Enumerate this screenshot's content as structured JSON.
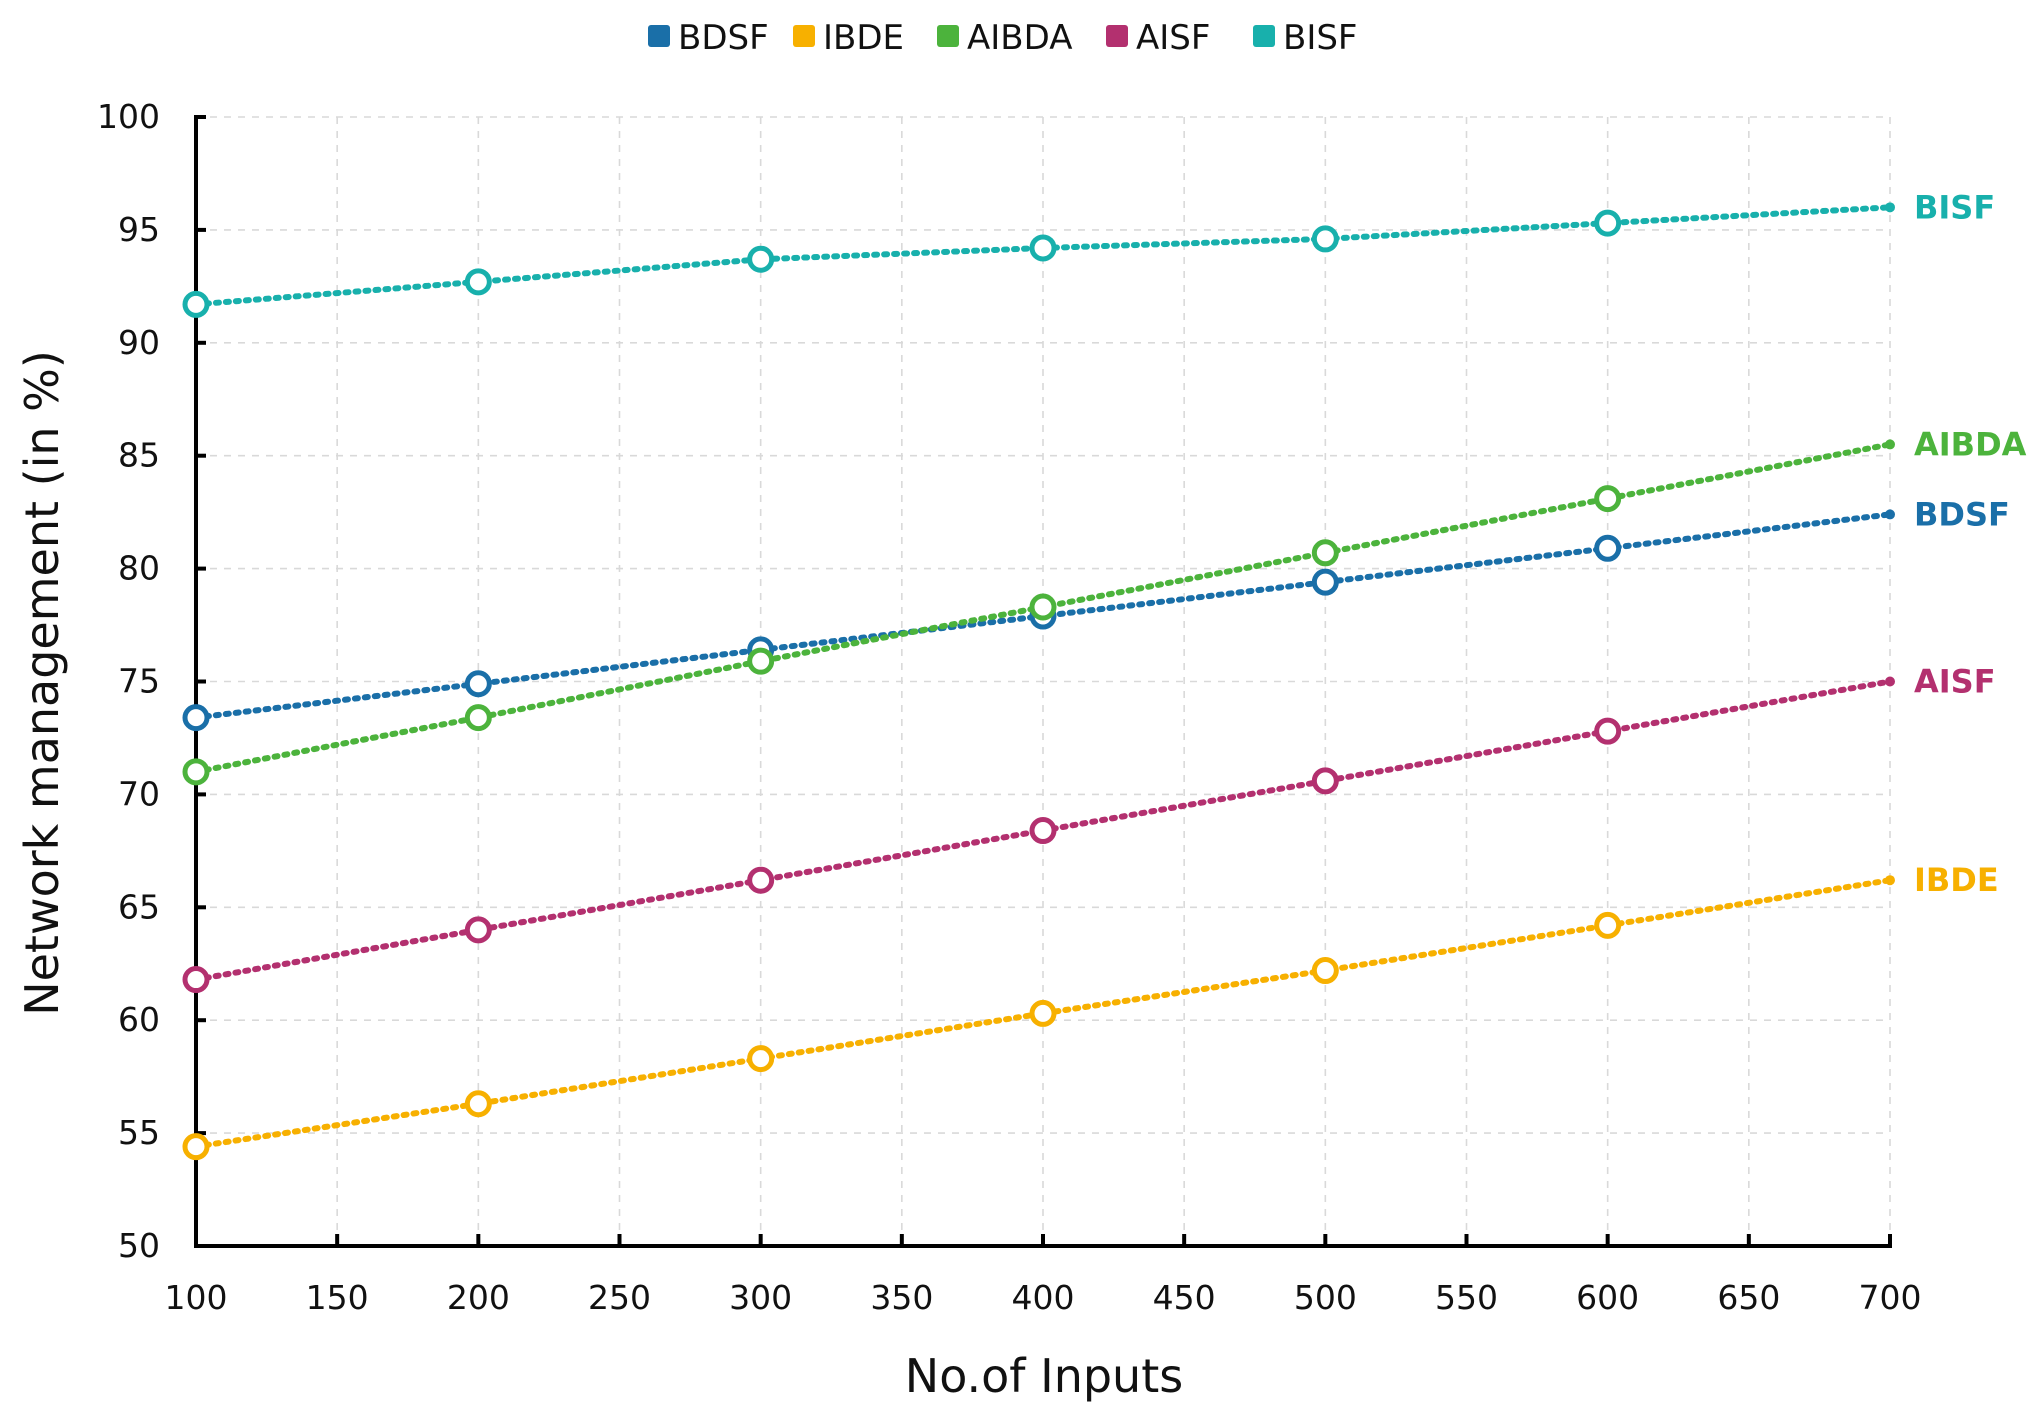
{
  "chart_data": {
    "type": "line",
    "title": "",
    "xlabel": "No.of Inputs",
    "ylabel": "Network management (in %)",
    "xlim": [
      100,
      700
    ],
    "ylim": [
      50,
      100
    ],
    "xticks": [
      100,
      150,
      200,
      250,
      300,
      350,
      400,
      450,
      500,
      550,
      600,
      650,
      700
    ],
    "yticks": [
      50,
      55,
      60,
      65,
      70,
      75,
      80,
      85,
      90,
      95,
      100
    ],
    "grid": true,
    "legend_position": "top-center",
    "x": [
      100,
      200,
      300,
      400,
      500,
      600,
      700
    ],
    "series": [
      {
        "name": "BDSF",
        "color": "#1a6fa8",
        "values": [
          73.4,
          74.9,
          76.4,
          77.9,
          79.4,
          80.9,
          82.4
        ]
      },
      {
        "name": "IBDE",
        "color": "#f7b000",
        "values": [
          54.4,
          56.3,
          58.3,
          60.3,
          62.2,
          64.2,
          66.2
        ]
      },
      {
        "name": "AIBDA",
        "color": "#4cb33c",
        "values": [
          71.0,
          73.4,
          75.9,
          78.3,
          80.7,
          83.1,
          85.5
        ]
      },
      {
        "name": "AISF",
        "color": "#b3306f",
        "values": [
          61.8,
          64.0,
          66.2,
          68.4,
          70.6,
          72.8,
          75.0
        ]
      },
      {
        "name": "BISF",
        "color": "#18b0ac",
        "values": [
          91.7,
          92.7,
          93.7,
          94.2,
          94.6,
          95.3,
          96.0
        ]
      }
    ]
  }
}
